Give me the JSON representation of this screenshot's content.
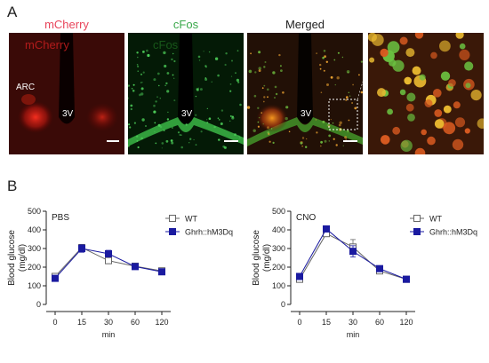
{
  "panel_a": {
    "letter": "A",
    "images": [
      {
        "title": "mCherry",
        "title_color": "#e8445a",
        "overlay_text": "mCherry",
        "region_label": "ARC",
        "ventricle_label": "3V"
      },
      {
        "title": "cFos",
        "title_color": "#3aa84a",
        "overlay_text": "cFos",
        "ventricle_label": "3V"
      },
      {
        "title": "Merged",
        "title_color": "#222222",
        "ventricle_label": "3V"
      },
      {
        "title": ""
      }
    ]
  },
  "panel_b": {
    "letter": "B"
  },
  "chart_data": [
    {
      "type": "line",
      "title": "PBS",
      "categories": [
        "0",
        "15",
        "30",
        "60",
        "120"
      ],
      "xlabel": "min",
      "ylabel": "Blood glucose (mg/dl)",
      "ylim": [
        0,
        500
      ],
      "yticks": [
        0,
        100,
        200,
        300,
        400,
        500
      ],
      "legend_position": "top-right",
      "series": [
        {
          "name": "WT",
          "marker": "open-square",
          "color": "#666666",
          "values": [
            150,
            305,
            235,
            205,
            180
          ],
          "errors": [
            12,
            15,
            12,
            10,
            15
          ]
        },
        {
          "name": "Ghrh::hM3Dq",
          "marker": "filled-square",
          "color": "#1a1aa0",
          "values": [
            140,
            300,
            272,
            203,
            175
          ],
          "errors": [
            10,
            20,
            18,
            10,
            12
          ]
        }
      ]
    },
    {
      "type": "line",
      "title": "CNO",
      "categories": [
        "0",
        "15",
        "30",
        "60",
        "120"
      ],
      "xlabel": "min",
      "ylabel": "Blood glucose (mg/dl)",
      "ylim": [
        0,
        500
      ],
      "yticks": [
        0,
        100,
        200,
        300,
        400,
        500
      ],
      "legend_position": "top-right",
      "series": [
        {
          "name": "WT",
          "marker": "open-square",
          "color": "#666666",
          "values": [
            135,
            380,
            308,
            180,
            135
          ],
          "errors": [
            10,
            12,
            40,
            8,
            6
          ]
        },
        {
          "name": "Ghrh::hM3Dq",
          "marker": "filled-square",
          "color": "#1a1aa0",
          "values": [
            150,
            405,
            285,
            192,
            135
          ],
          "errors": [
            15,
            10,
            30,
            10,
            6
          ]
        }
      ]
    }
  ]
}
